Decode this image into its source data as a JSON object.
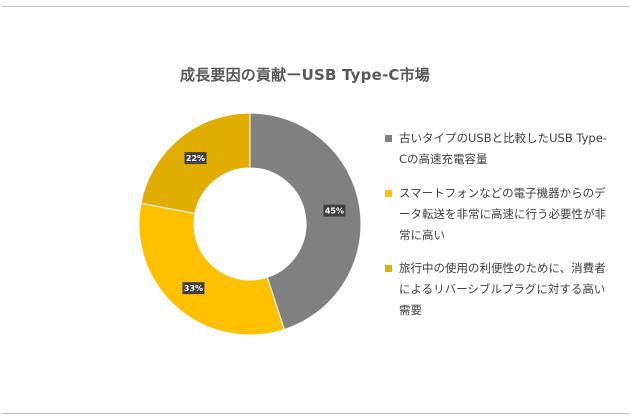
{
  "chart_data": {
    "type": "pie",
    "variant": "donut",
    "title": "成長要因の貢献ーUSB Type-C市場",
    "categories": [
      "古いタイプのUSBと比較したUSB Type-Cの高速充電容量",
      "スマートフォンなどの電子機器からのデータ転送を非常に高速に行う必要性が非常に高い",
      "旅行中の使用の利便性のために、消費者によるリバーシブルプラグに対する高い需要"
    ],
    "values": [
      45,
      33,
      22
    ],
    "data_labels": [
      "45%",
      "33%",
      "22%"
    ],
    "colors": [
      "#808080",
      "#ffc000",
      "#e1ad01"
    ],
    "legend_position": "right"
  }
}
